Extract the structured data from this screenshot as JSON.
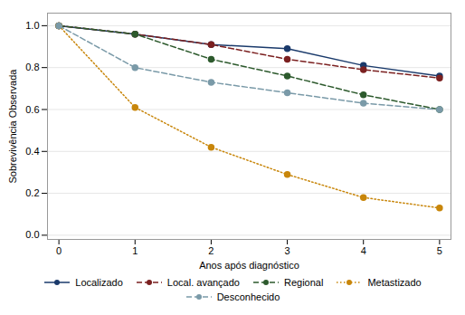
{
  "chart_data": {
    "type": "line",
    "xlabel": "Anos após diagnóstico",
    "ylabel": "Sobrevivência Observada",
    "x": [
      0,
      1,
      2,
      3,
      4,
      5
    ],
    "series": [
      {
        "name": "Localizado",
        "color": "#1a3a6b",
        "line_style": "solid",
        "marker": "circle",
        "values": [
          1.0,
          0.96,
          0.91,
          0.89,
          0.81,
          0.76
        ]
      },
      {
        "name": "Local. avançado",
        "color": "#7b2020",
        "line_style": "dashed",
        "marker": "circle",
        "values": [
          1.0,
          0.96,
          0.91,
          0.84,
          0.79,
          0.75
        ]
      },
      {
        "name": "Regional",
        "color": "#2d5a2d",
        "line_style": "dashed",
        "marker": "circle",
        "values": [
          1.0,
          0.96,
          0.84,
          0.76,
          0.67,
          0.6
        ]
      },
      {
        "name": "Metastizado",
        "color": "#c8860a",
        "line_style": "dotted",
        "marker": "circle",
        "values": [
          1.0,
          0.61,
          0.42,
          0.29,
          0.18,
          0.13
        ]
      },
      {
        "name": "Desconhecido",
        "color": "#7a9aa8",
        "line_style": "dashed",
        "marker": "circle",
        "values": [
          1.0,
          0.8,
          0.73,
          0.68,
          0.63,
          0.6
        ]
      }
    ],
    "xlim": [
      -0.15,
      5.15
    ],
    "ylim": [
      -0.02,
      1.06
    ],
    "xticks": [
      0,
      1,
      2,
      3,
      4,
      5
    ],
    "yticks": [
      {
        "value": 0,
        "label": "0.0"
      },
      0.2,
      0.4,
      0.6,
      0.8,
      {
        "value": 1,
        "label": "1.0"
      }
    ],
    "grid": true,
    "legend": "bottom"
  }
}
